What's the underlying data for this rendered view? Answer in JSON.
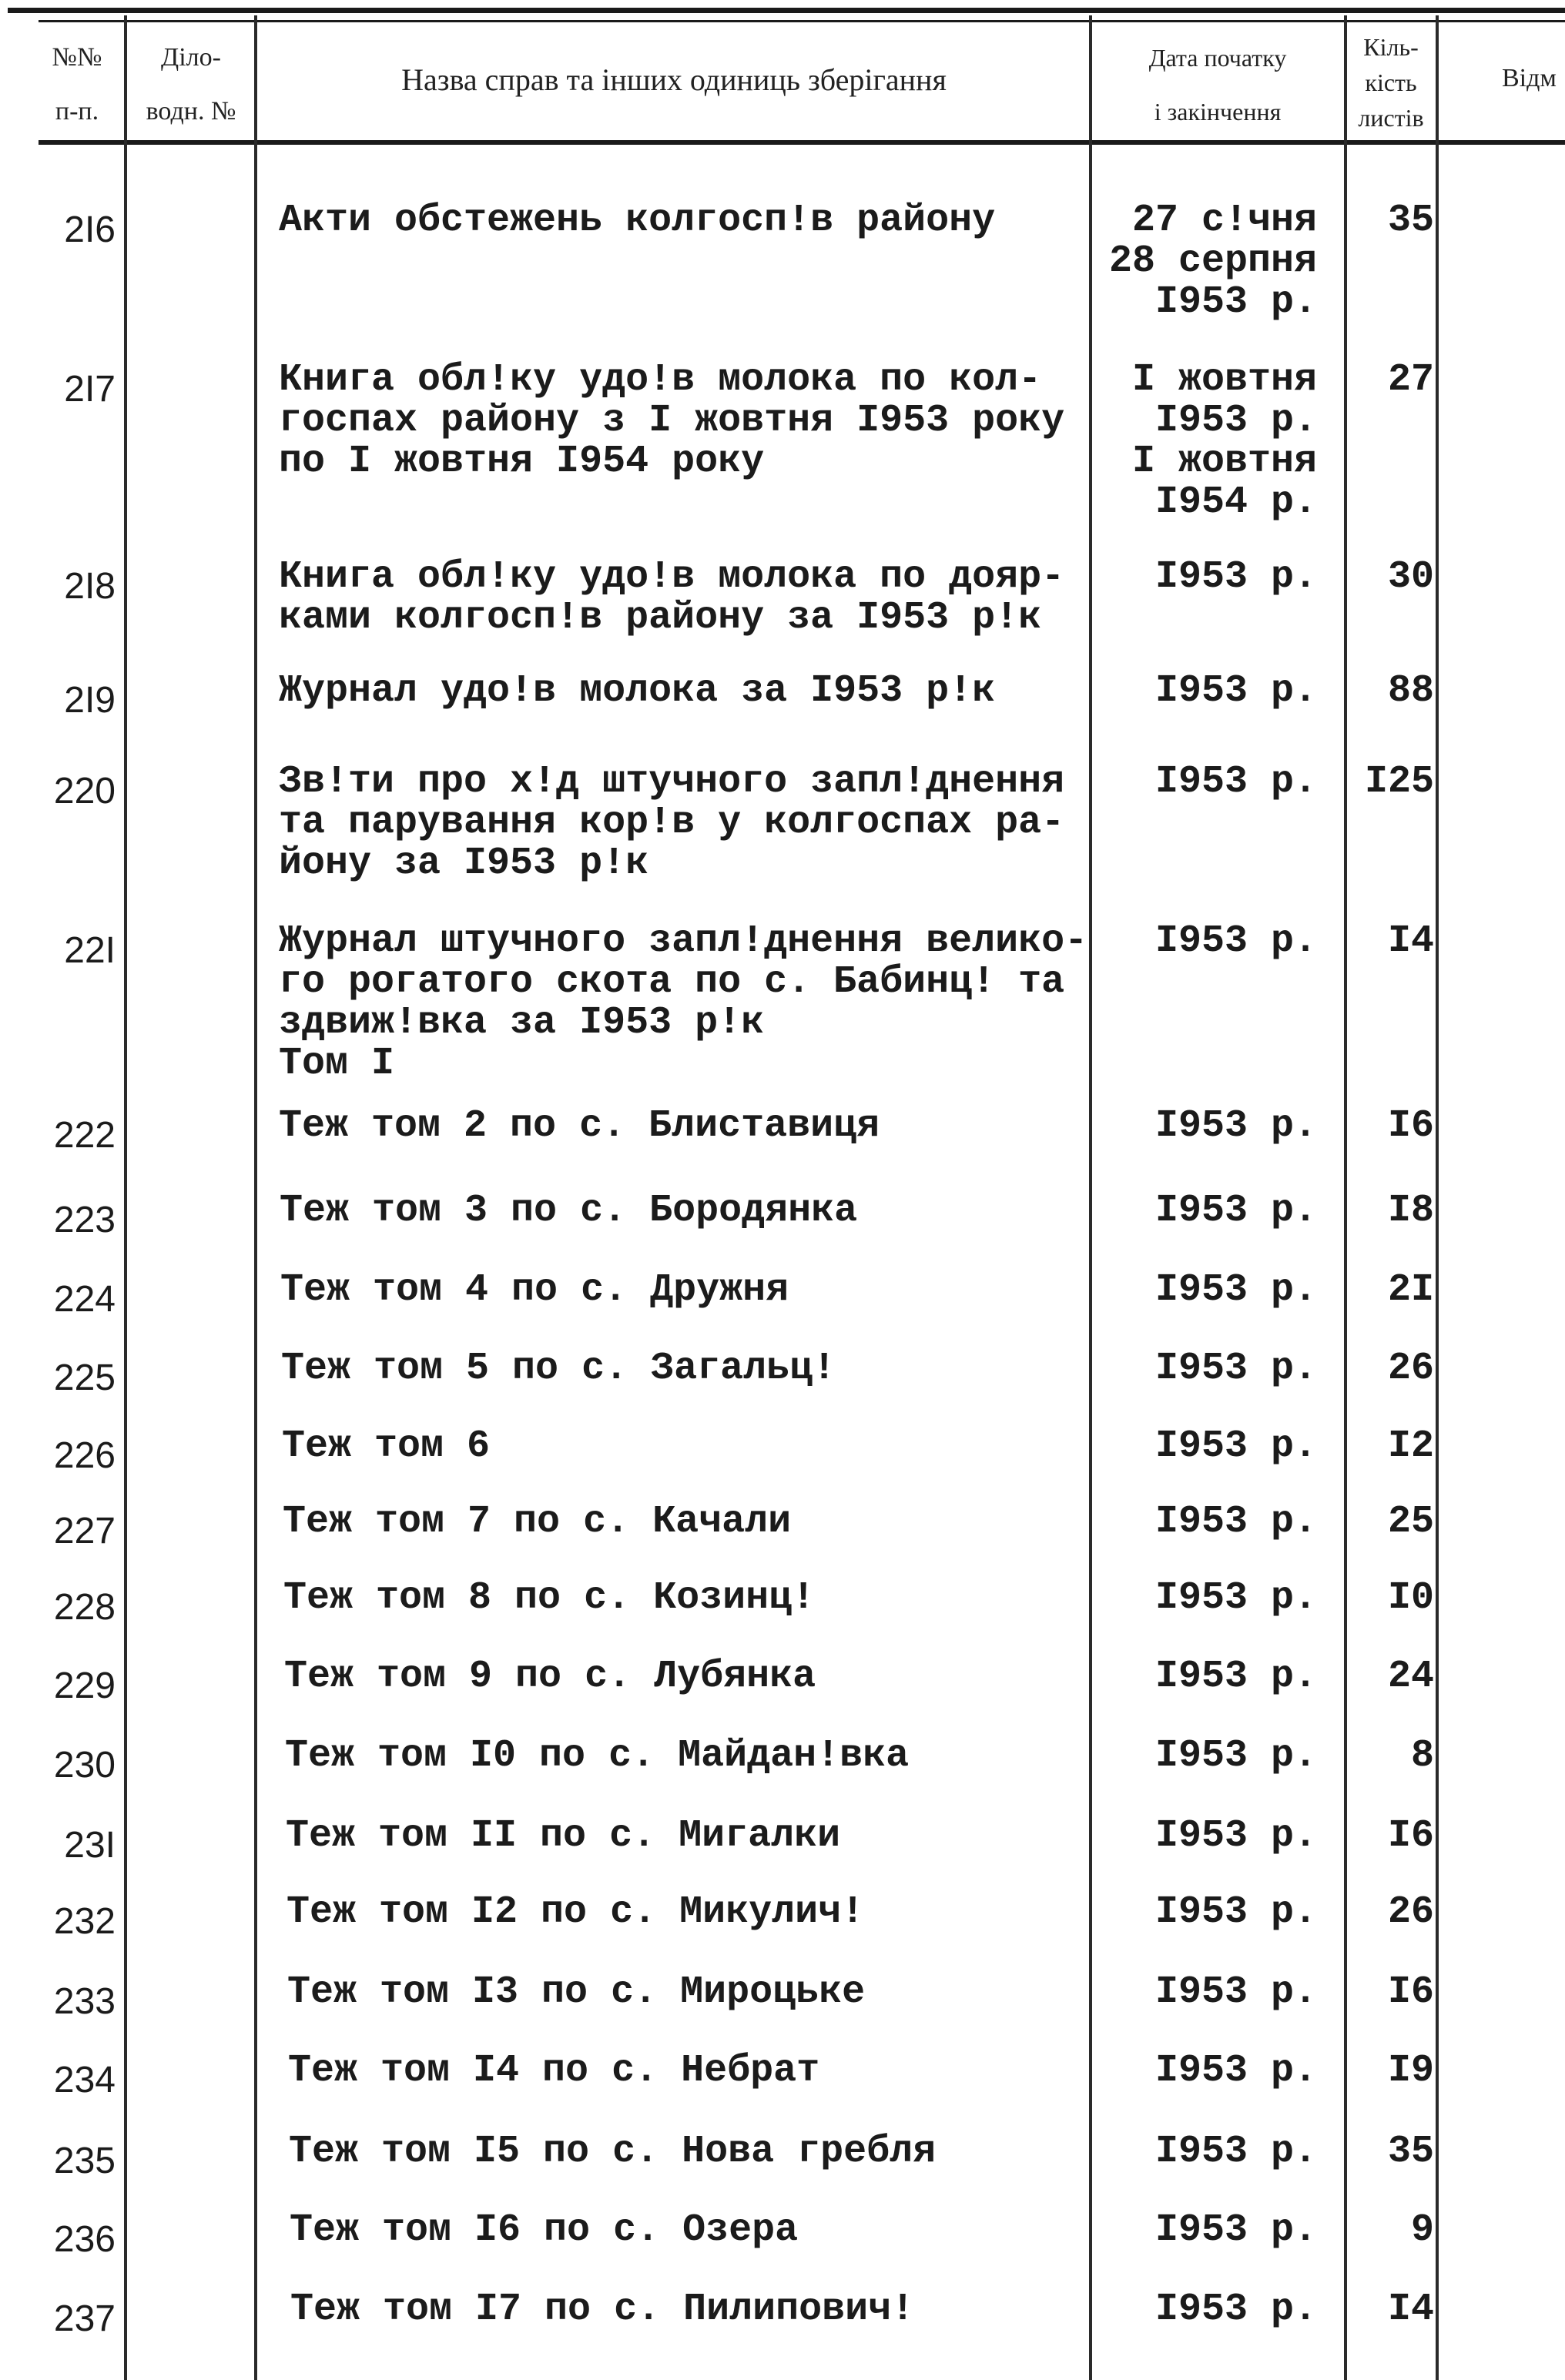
{
  "header": {
    "num_col": [
      "№№",
      "п-п."
    ],
    "office_col": [
      "Діло-",
      "водн. №"
    ],
    "title_col": "Назва справ та інших одиниць зберігання",
    "date_col": [
      "Дата початку",
      "і закінчення"
    ],
    "count_col": [
      "Кіль-",
      "кість",
      "листів"
    ],
    "notes_col": "Відм"
  },
  "rows": [
    {
      "num": "2I6",
      "name": "Акти обстежень колгосп!в району",
      "date": "27 с!чня\n28 серпня\nI953 р.",
      "count": "35"
    },
    {
      "num": "2I7",
      "name": "Книга обл!ку удо!в молока по кол-\nгоспах району з I жовтня I953 року\nпо I жовтня I954 року",
      "date": "I жовтня\nI953 р.\nI жовтня\nI954 р.",
      "count": "27"
    },
    {
      "num": "2I8",
      "name": "Книга обл!ку удо!в молока по дояр-\nками колгосп!в району за I953 р!к",
      "date": "I953 р.",
      "count": "30"
    },
    {
      "num": "2I9",
      "name": "Журнал удо!в молока за I953 р!к",
      "date": "I953 р.",
      "count": "88"
    },
    {
      "num": "220",
      "name": "Зв!ти про х!д штучного запл!днення\nта парування кор!в у колгоспах ра-\nйону за I953 р!к",
      "date": "I953 р.",
      "count": "I25"
    },
    {
      "num": "22I",
      "name": "Журнал штучного запл!днення велико-\nго рогатого скота по с. Бабинц! та\nздвиж!вка за I953 р!к\nТом I",
      "date": "I953 р.",
      "count": "I4"
    },
    {
      "num": "222",
      "name": "Теж том 2 по с. Блиставиця",
      "date": "I953 р.",
      "count": "I6"
    },
    {
      "num": "223",
      "name": "Теж том 3 по с. Бородянка",
      "date": "I953 р.",
      "count": "I8"
    },
    {
      "num": "224",
      "name": "Теж том 4 по с. Дружня",
      "date": "I953 р.",
      "count": "2I"
    },
    {
      "num": "225",
      "name": "Теж том 5 по с. Загальц!",
      "date": "I953 р.",
      "count": "26"
    },
    {
      "num": "226",
      "name": "Теж том 6",
      "date": "I953 р.",
      "count": "I2"
    },
    {
      "num": "227",
      "name": "Теж том 7 по с. Качали",
      "date": "I953 р.",
      "count": "25"
    },
    {
      "num": "228",
      "name": "Теж том 8 по с. Козинц!",
      "date": "I953 р.",
      "count": "I0"
    },
    {
      "num": "229",
      "name": "Теж том 9 по с. Лубянка",
      "date": "I953 р.",
      "count": "24"
    },
    {
      "num": "230",
      "name": "Теж том I0 по с. Майдан!вка",
      "date": "I953 р.",
      "count": "8"
    },
    {
      "num": "23I",
      "name": "Теж том II по с. Мигалки",
      "date": "I953 р.",
      "count": "I6"
    },
    {
      "num": "232",
      "name": "Теж том I2 по с. Микулич!",
      "date": "I953 р.",
      "count": "26"
    },
    {
      "num": "233",
      "name": "Теж том I3 по с. Мироцьке",
      "date": "I953 р.",
      "count": "I6"
    },
    {
      "num": "234",
      "name": "Теж том I4 по с. Небрат",
      "date": "I953 р.",
      "count": "I9"
    },
    {
      "num": "235",
      "name": "Теж том I5 по с. Нова гребля",
      "date": "I953 р.",
      "count": "35"
    },
    {
      "num": "236",
      "name": "Теж том I6 по с. Озера",
      "date": "I953 р.",
      "count": "9"
    },
    {
      "num": "237",
      "name": "Теж том I7 по с. Пилипович!",
      "date": "I953 р.",
      "count": "I4"
    }
  ]
}
